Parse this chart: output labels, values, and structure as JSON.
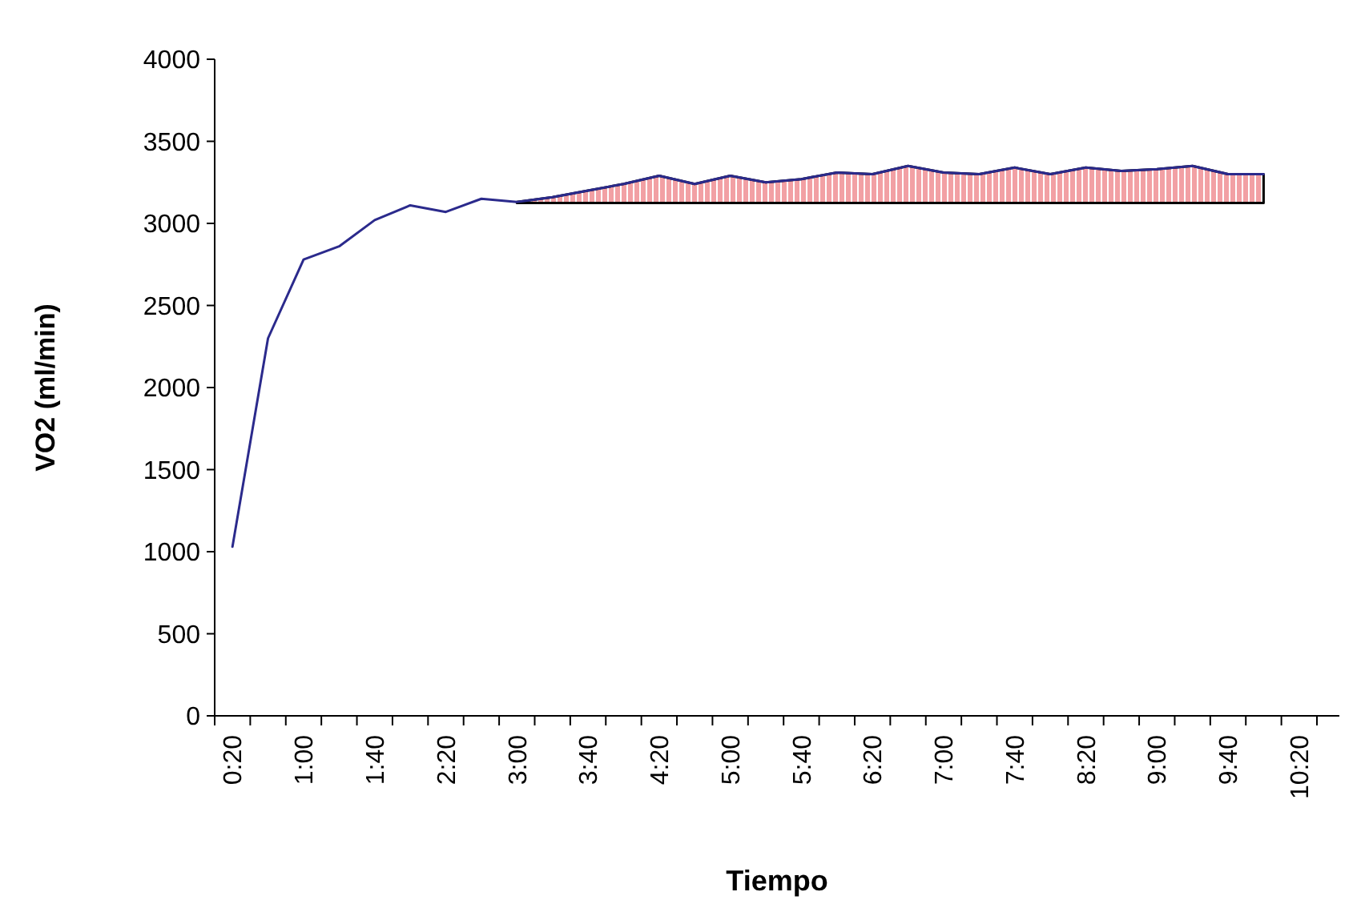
{
  "chart_data": {
    "type": "line",
    "xlabel": "Tiempo",
    "ylabel": "VO2 (ml/min)",
    "categories": [
      "0:20",
      null,
      "1:00",
      null,
      "1:40",
      null,
      "2:20",
      null,
      "3:00",
      null,
      "3:40",
      null,
      "4:20",
      null,
      "5:00",
      null,
      "5:40",
      null,
      "6:20",
      null,
      "7:00",
      null,
      "7:40",
      null,
      "8:20",
      null,
      "9:00",
      null,
      "9:40",
      null,
      "10:20"
    ],
    "series": [
      {
        "color": "#2b2a8c",
        "values": [
          1030,
          2300,
          2780,
          2860,
          3020,
          3110,
          3070,
          3150,
          3130,
          3160,
          3200,
          3240,
          3290,
          3240,
          3290,
          3250,
          3270,
          3310,
          3300,
          3350,
          3310,
          3300,
          3340,
          3300,
          3340,
          3320,
          3330,
          3350,
          3300,
          3300,
          null
        ],
        "lower": [
          null,
          null,
          null,
          null,
          null,
          null,
          null,
          null,
          3125,
          3125,
          3125,
          3125,
          3125,
          3125,
          3125,
          3125,
          3125,
          3125,
          3125,
          3125,
          3125,
          3125,
          3125,
          3125,
          3125,
          3125,
          3125,
          3125,
          3125,
          3125,
          null
        ],
        "upper": [
          null,
          null,
          null,
          null,
          null,
          null,
          null,
          null,
          3130,
          3160,
          3200,
          3240,
          3290,
          3240,
          3290,
          3250,
          3270,
          3310,
          3300,
          3350,
          3310,
          3300,
          3340,
          3300,
          3340,
          3320,
          3330,
          3350,
          3300,
          3300,
          null
        ]
      }
    ],
    "ylim": [
      0,
      4000
    ],
    "yticks": [
      0,
      500,
      1000,
      1500,
      2000,
      2500,
      3000,
      3500,
      4000
    ],
    "grid": false,
    "marker": "none",
    "line_style": "solid"
  }
}
